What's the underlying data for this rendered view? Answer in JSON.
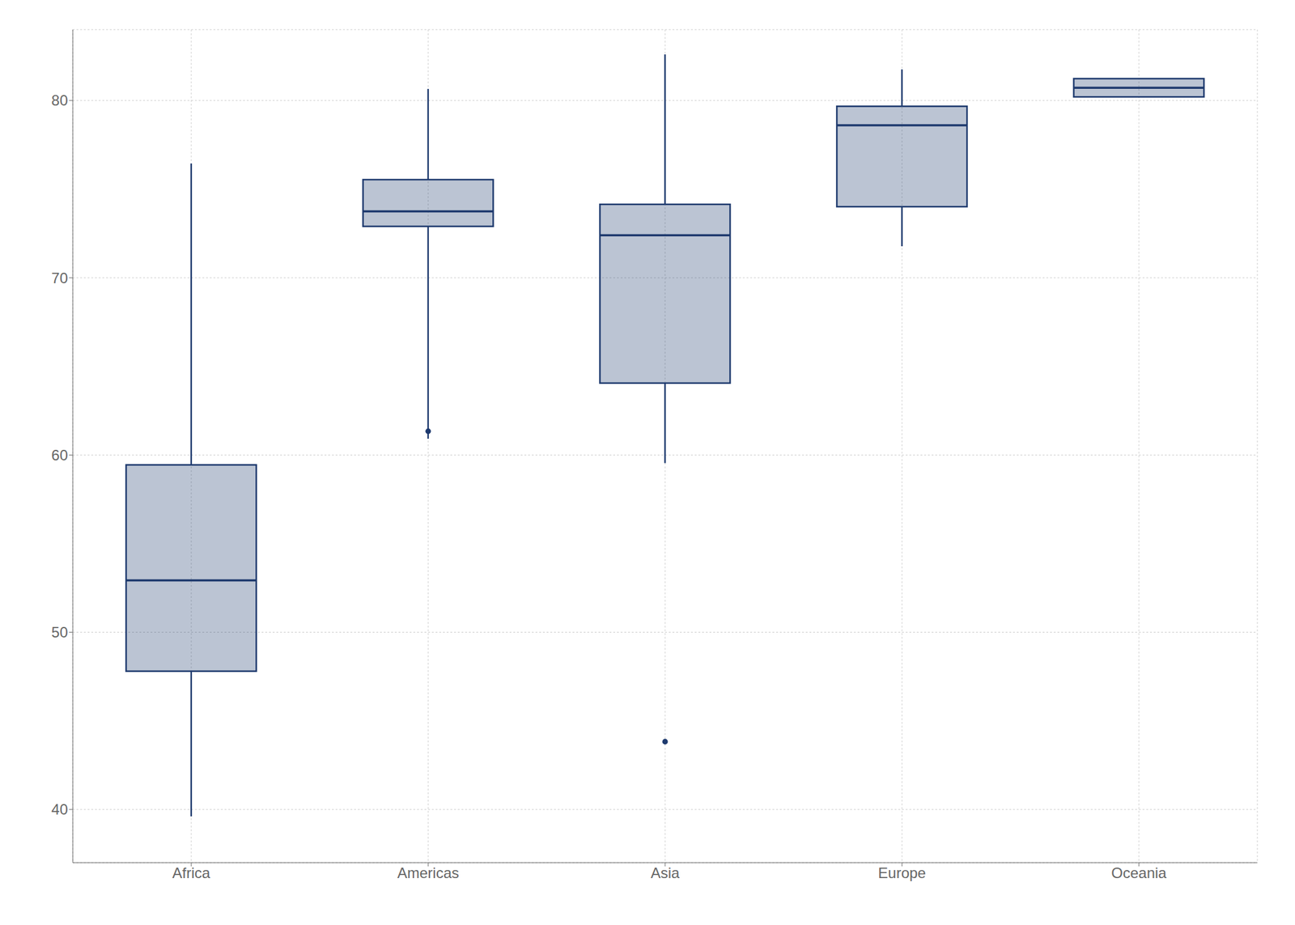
{
  "chart_data": {
    "type": "box",
    "categories": [
      "Africa",
      "Americas",
      "Asia",
      "Europe",
      "Oceania"
    ],
    "q1": [
      47.803,
      72.899,
      64.057,
      74.009,
      80.204
    ],
    "median": [
      52.926,
      73.747,
      72.396,
      78.608,
      80.7195
    ],
    "q3": [
      59.443,
      75.537,
      74.143,
      79.674,
      81.235
    ],
    "whisker_low": [
      39.613,
      60.916,
      59.545,
      71.777,
      80.204
    ],
    "whisker_high": [
      76.442,
      80.653,
      82.603,
      81.757,
      81.235
    ],
    "outliers": [
      [],
      [
        61.34
      ],
      [
        43.828
      ],
      [],
      []
    ],
    "color": "#1e3a6e",
    "ylim": [
      37,
      84
    ],
    "yticks": [
      40,
      50,
      60,
      70,
      80
    ],
    "grid": true
  }
}
